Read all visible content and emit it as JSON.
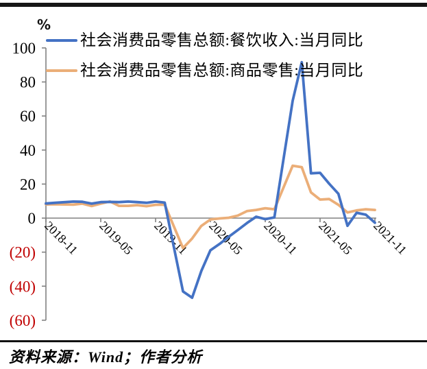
{
  "chart": {
    "unit_label": "%"
  },
  "footer": {
    "source": "资料来源：Wind；作者分析"
  },
  "chart_data": {
    "type": "line",
    "title": "",
    "xlabel": "",
    "ylabel": "%",
    "ylim": [
      -60,
      100
    ],
    "grid": false,
    "legend_position": "top-left",
    "axis_color": "#808080",
    "negative_label_color": "#c00000",
    "x": [
      "2018-11",
      "2018-12",
      "2019-01",
      "2019-02",
      "2019-03",
      "2019-04",
      "2019-05",
      "2019-06",
      "2019-07",
      "2019-08",
      "2019-09",
      "2019-10",
      "2019-11",
      "2019-12",
      "2020-01",
      "2020-02",
      "2020-03",
      "2020-04",
      "2020-05",
      "2020-06",
      "2020-07",
      "2020-08",
      "2020-09",
      "2020-10",
      "2020-11",
      "2020-12",
      "2021-01",
      "2021-02",
      "2021-03",
      "2021-04",
      "2021-05",
      "2021-06",
      "2021-07",
      "2021-08",
      "2021-09",
      "2021-10",
      "2021-11"
    ],
    "x_tick_labels": [
      "2018-11",
      "2019-05",
      "2019-11",
      "2020-05",
      "2020-11",
      "2021-05",
      "2021-11"
    ],
    "y_ticks": [
      {
        "value": 100,
        "label": "100"
      },
      {
        "value": 80,
        "label": "80"
      },
      {
        "value": 60,
        "label": "60"
      },
      {
        "value": 40,
        "label": "40"
      },
      {
        "value": 20,
        "label": "20"
      },
      {
        "value": 0,
        "label": "0"
      },
      {
        "value": -20,
        "label": "(20)"
      },
      {
        "value": -40,
        "label": "(40)"
      },
      {
        "value": -60,
        "label": "(60)"
      }
    ],
    "series": [
      {
        "name": "社会消费品零售总额:餐饮收入:当月同比",
        "color": "#4472c4",
        "values": [
          8.6,
          9.0,
          null,
          9.7,
          9.6,
          8.5,
          9.4,
          9.5,
          9.4,
          9.7,
          9.4,
          9.0,
          9.7,
          9.1,
          null,
          -43.1,
          -46.8,
          -31.1,
          -18.9,
          -15.2,
          -11.0,
          -7.0,
          -2.9,
          0.8,
          -0.6,
          0.4,
          null,
          68.9,
          91.6,
          26.3,
          26.6,
          20.2,
          14.3,
          -4.5,
          3.1,
          2.0,
          -2.7
        ]
      },
      {
        "name": "社会消费品零售总额:商品零售:当月同比",
        "color": "#ebae78",
        "values": [
          8.0,
          8.1,
          null,
          7.9,
          8.5,
          7.1,
          8.5,
          9.8,
          7.2,
          7.2,
          7.6,
          7.0,
          7.8,
          7.9,
          null,
          -17.6,
          -12.0,
          -4.6,
          -0.8,
          -0.2,
          0.2,
          1.5,
          4.1,
          4.8,
          5.8,
          5.2,
          null,
          30.8,
          29.9,
          15.1,
          10.9,
          11.2,
          7.8,
          3.3,
          4.5,
          5.2,
          4.8
        ]
      }
    ]
  }
}
